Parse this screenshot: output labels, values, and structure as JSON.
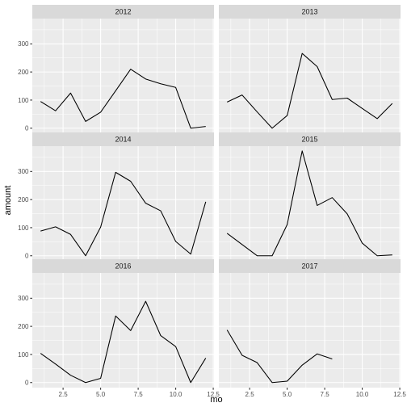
{
  "chart_data": {
    "type": "line",
    "layout": "facet_wrap",
    "ncol": 2,
    "xlabel": "mo",
    "ylabel": "amount",
    "xlim": [
      0.45,
      12.55
    ],
    "ylim": [
      -18,
      390
    ],
    "xticks": [
      2.5,
      5.0,
      7.5,
      10.0,
      12.5
    ],
    "xtick_labels": [
      "2.5",
      "5.0",
      "7.5",
      "10.0",
      "12.5"
    ],
    "yticks": [
      0,
      100,
      200,
      300
    ],
    "ytick_labels": [
      "0",
      "100",
      "200",
      "300"
    ],
    "grid": true,
    "line_color": "#000000",
    "panels": [
      {
        "title": "2012",
        "x": [
          1,
          2,
          3,
          4,
          5,
          6,
          7,
          8,
          9,
          10,
          11,
          12
        ],
        "y": [
          95,
          62,
          125,
          24,
          57,
          133,
          210,
          175,
          158,
          145,
          0,
          6
        ]
      },
      {
        "title": "2013",
        "x": [
          1,
          2,
          3,
          4,
          5,
          6,
          7,
          8,
          9,
          10,
          11,
          12
        ],
        "y": [
          93,
          118,
          58,
          0,
          45,
          266,
          219,
          102,
          107,
          70,
          34,
          88
        ]
      },
      {
        "title": "2014",
        "x": [
          1,
          2,
          3,
          4,
          5,
          6,
          7,
          8,
          9,
          10,
          11,
          12
        ],
        "y": [
          88,
          103,
          76,
          0,
          102,
          297,
          265,
          187,
          160,
          51,
          6,
          192
        ]
      },
      {
        "title": "2015",
        "x": [
          1,
          2,
          3,
          4,
          5,
          6,
          7,
          8,
          9,
          10,
          11,
          12
        ],
        "y": [
          80,
          40,
          0,
          0,
          111,
          373,
          179,
          207,
          149,
          45,
          0,
          3
        ]
      },
      {
        "title": "2016",
        "x": [
          1,
          2,
          3,
          4,
          5,
          6,
          7,
          8,
          9,
          10,
          11,
          12
        ],
        "y": [
          104,
          66,
          26,
          0,
          15,
          237,
          185,
          289,
          167,
          128,
          0,
          87
        ]
      },
      {
        "title": "2017",
        "x": [
          1,
          2,
          3,
          4,
          5,
          6,
          7,
          8
        ],
        "y": [
          187,
          97,
          71,
          0,
          5,
          62,
          102,
          84
        ]
      }
    ]
  }
}
